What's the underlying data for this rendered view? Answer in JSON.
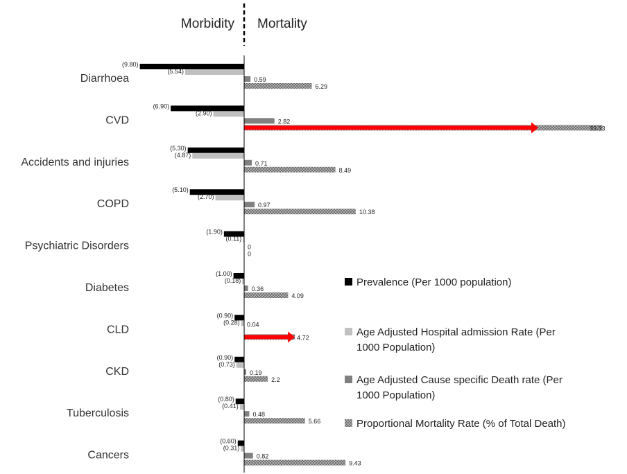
{
  "chart_data": {
    "type": "bar",
    "orientation": "horizontal",
    "header_left": "Morbidity",
    "header_right": "Mortality",
    "categories": [
      "Diarrhoea",
      "CVD",
      "Accidents and injuries",
      "COPD",
      "Psychiatric Disorders",
      "Diabetes",
      "CLD",
      "CKD",
      "Tuberculosis",
      "Cancers"
    ],
    "series": [
      {
        "name": "Prevalence (Per 1000 population)",
        "side": "left",
        "color": "#000000",
        "pattern": "solid",
        "values": [
          9.8,
          6.9,
          5.3,
          5.1,
          1.9,
          1.0,
          0.9,
          0.9,
          0.8,
          0.6
        ],
        "labels": [
          "(9.80)",
          "(6.90)",
          "(5.30)",
          "(5.10)",
          "(1.90)",
          "(1.00)",
          "(0.90)",
          "(0.90)",
          "(0.80)",
          "(0.60)"
        ]
      },
      {
        "name": "Age Adjusted Hospital admission Rate (Per 1000 Population)",
        "side": "left",
        "color": "#c0c0c0",
        "pattern": "solid",
        "values": [
          5.54,
          2.9,
          4.87,
          2.7,
          0.11,
          0.18,
          0.28,
          0.73,
          0.41,
          0.31
        ],
        "labels": [
          "(5.54)",
          "(2.90)",
          "(4.87)",
          "(2.70)",
          "(0.11)",
          "(0.18)",
          "(0.28)",
          "(0.73)",
          "(0.41)",
          "(0.31)"
        ]
      },
      {
        "name": "Age Adjusted Cause specific Death rate (Per 1000 Population)",
        "side": "right",
        "color": "#808080",
        "pattern": "solid",
        "values": [
          0.59,
          2.82,
          0.71,
          0.97,
          0,
          0.36,
          0.04,
          0.19,
          0.48,
          0.82
        ],
        "labels": [
          "0.59",
          "2.82",
          "0.71",
          "0.97",
          "0",
          "0.36",
          "0.04",
          "0.19",
          "0.48",
          "0.82"
        ]
      },
      {
        "name": "Proportional Mortality Rate (% of Total Death)",
        "side": "right",
        "color": "#909090",
        "pattern": "hatched",
        "values": [
          6.29,
          33.33,
          8.49,
          10.38,
          0,
          4.09,
          4.72,
          2.2,
          5.66,
          9.43
        ],
        "labels": [
          "6.29",
          "33.33",
          "8.49",
          "10.38",
          "0",
          "4.09",
          "4.72",
          "2.2",
          "5.66",
          "9.43"
        ]
      }
    ],
    "highlights": [
      {
        "category": "CVD",
        "series": "Proportional Mortality Rate (% of Total Death)",
        "color": "#ff0000",
        "style": "arrow"
      },
      {
        "category": "CLD",
        "series": "Proportional Mortality Rate (% of Total Death)",
        "color": "#ff0000",
        "style": "arrow"
      }
    ],
    "legend": {
      "position": "right",
      "lines": [
        {
          "series": 0,
          "text": [
            "Prevalence (Per 1000 population)"
          ]
        },
        {
          "series": 1,
          "text": [
            "Age Adjusted Hospital admission Rate (Per",
            "1000 Population)"
          ]
        },
        {
          "series": 2,
          "text": [
            "Age Adjusted Cause specific Death rate (Per",
            "1000 Population)"
          ]
        },
        {
          "series": 3,
          "text": [
            "Proportional Mortality Rate (% of Total Death)"
          ]
        }
      ]
    },
    "grid": false
  }
}
